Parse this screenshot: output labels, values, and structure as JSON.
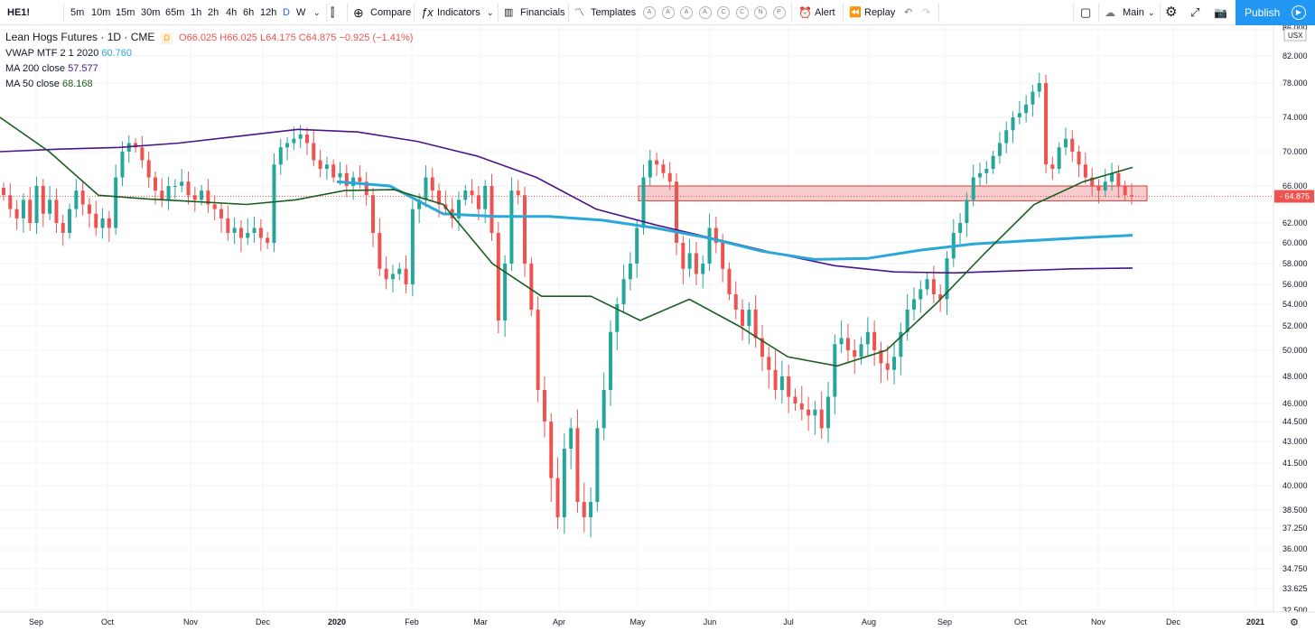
{
  "toolbar": {
    "symbol": "HE1!",
    "intervals": [
      "5m",
      "10m",
      "15m",
      "30m",
      "65m",
      "1h",
      "2h",
      "4h",
      "6h",
      "12h",
      "D",
      "W"
    ],
    "active_interval": "D",
    "compare": "Compare",
    "indicators": "Indicators",
    "financials": "Financials",
    "templates": "Templates",
    "template_slots": [
      "A",
      "A",
      "A",
      "A",
      "C",
      "C",
      "N",
      "P"
    ],
    "alert": "Alert",
    "replay": "Replay",
    "layout": "Main",
    "publish": "Publish"
  },
  "legend": {
    "title": "Lean Hogs Futures · 1D · CME",
    "badge": "D",
    "open": "O66.025",
    "high": "H66.025",
    "low": "L64.175",
    "close": "C64.875",
    "change": "−0.925 (−1.41%)",
    "vwap_label": "VWAP MTF 2 1 2020",
    "vwap_value": "60.760",
    "ma200_label": "MA 200 close",
    "ma200_value": "57.577",
    "ma50_label": "MA 50 close",
    "ma50_value": "68.168"
  },
  "colors": {
    "up": "#26a69a",
    "down": "#ef5350",
    "vwap": "#2aa8d8",
    "ma200": "#4a148c",
    "ma50": "#1b5e20",
    "zone_fill": "#f6c3c6",
    "zone_border": "#e53935",
    "accent": "#2962ff"
  },
  "chart_data": {
    "type": "candlestick",
    "title": "Lean Hogs Futures · 1D · CME",
    "price_axis": {
      "currency": "USX",
      "ticks": [
        86.0,
        82.0,
        78.0,
        74.0,
        70.0,
        66.0,
        62.0,
        60.0,
        58.0,
        56.0,
        54.0,
        52.0,
        50.0,
        48.0,
        46.0,
        44.5,
        43.0,
        41.5,
        40.0,
        38.5,
        37.25,
        36.0,
        34.75,
        33.625,
        32.5
      ],
      "tick_labels": [
        "86.000",
        "82.000",
        "78.000",
        "74.000",
        "70.000",
        "66.000",
        "62.000",
        "60.000",
        "58.000",
        "56.000",
        "54.000",
        "52.000",
        "50.000",
        "48.000",
        "46.000",
        "44.500",
        "43.000",
        "41.500",
        "40.000",
        "38.500",
        "37.250",
        "36.000",
        "34.750",
        "33.625",
        "32.500"
      ],
      "ylim": [
        32.0,
        86.5
      ]
    },
    "time_axis": {
      "labels": [
        "Sep",
        "Oct",
        "Nov",
        "Dec",
        "2020",
        "Feb",
        "Mar",
        "Apr",
        "May",
        "Jun",
        "Jul",
        "Aug",
        "Sep",
        "Oct",
        "Nov",
        "Dec",
        "2021"
      ]
    },
    "last_price": 64.875,
    "last_price_label": "64.875",
    "resistance_zone": [
      64.4,
      66.0
    ],
    "close_series": [
      65.0,
      63.5,
      62.5,
      64.5,
      62.0,
      66.0,
      63.0,
      64.5,
      62.0,
      61.0,
      63.5,
      65.5,
      64.0,
      63.0,
      61.5,
      62.5,
      61.5,
      67.0,
      70.0,
      71.0,
      70.5,
      69.0,
      67.0,
      65.5,
      64.5,
      66.0,
      66.0,
      66.5,
      65.0,
      64.5,
      65.5,
      64.0,
      63.5,
      62.5,
      61.0,
      61.5,
      60.5,
      61.0,
      61.5,
      60.5,
      60.0,
      68.5,
      70.5,
      71.0,
      71.5,
      72.0,
      71.0,
      69.0,
      68.0,
      68.5,
      67.0,
      67.5,
      66.0,
      67.0,
      66.5,
      65.0,
      61.0,
      57.5,
      56.5,
      57.0,
      57.5,
      56.0,
      63.5,
      64.5,
      67.0,
      65.5,
      64.0,
      63.5,
      62.5,
      64.5,
      65.5,
      65.0,
      63.5,
      66.0,
      61.0,
      52.5,
      58.0,
      65.5,
      65.0,
      58.0,
      53.5,
      47.0,
      44.5,
      40.5,
      38.0,
      42.5,
      44.0,
      39.0,
      38.0,
      39.0,
      44.0,
      47.0,
      51.5,
      54.0,
      56.5,
      58.0,
      61.5,
      67.0,
      69.0,
      68.5,
      67.5,
      66.5,
      60.0,
      57.5,
      59.0,
      57.0,
      58.0,
      61.5,
      60.0,
      57.5,
      55.0,
      53.5,
      52.0,
      53.5,
      51.0,
      49.5,
      48.5,
      47.0,
      48.0,
      46.5,
      46.0,
      45.5,
      45.0,
      45.5,
      44.0,
      46.5,
      50.5,
      51.0,
      50.0,
      49.5,
      50.5,
      51.5,
      50.0,
      49.0,
      48.5,
      49.5,
      51.5,
      53.5,
      54.5,
      55.5,
      56.5,
      55.0,
      54.5,
      58.5,
      61.0,
      62.0,
      64.5,
      67.0,
      67.5,
      68.0,
      69.5,
      71.0,
      72.5,
      74.0,
      74.5,
      75.5,
      77.0,
      78.0,
      68.5,
      68.0,
      70.5,
      71.5,
      70.0,
      68.5,
      67.0,
      66.0,
      65.5,
      66.5,
      67.5,
      66.0,
      65.0,
      64.875
    ],
    "vwap_series": [
      66.5,
      66.0,
      63.0,
      62.7,
      62.7,
      62.3,
      61.5,
      60.5,
      59.2,
      58.4,
      58.5,
      59.3,
      59.9,
      60.2,
      60.5,
      60.76
    ],
    "ma200_series": [
      70.0,
      70.3,
      70.5,
      71.0,
      71.8,
      72.6,
      72.3,
      71.2,
      69.5,
      67.0,
      63.5,
      61.8,
      60.4,
      59.0,
      57.8,
      57.2,
      57.1,
      57.3,
      57.5,
      57.577
    ],
    "ma50_series": [
      74.0,
      70.0,
      65.0,
      64.6,
      64.3,
      64.0,
      64.5,
      65.5,
      65.6,
      64.0,
      58.0,
      54.8,
      54.8,
      52.5,
      54.5,
      52.0,
      49.5,
      48.8,
      50.0,
      54.0,
      59.0,
      64.0,
      66.5,
      68.168
    ]
  }
}
